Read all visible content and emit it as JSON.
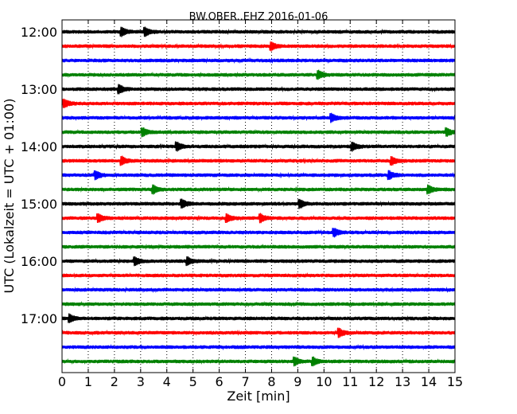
{
  "chart_data": {
    "type": "line",
    "title": "BW.OBER..EHZ 2016-01-06",
    "xlabel": "Zeit  [min]",
    "ylabel": "UTC (Lokalzeit = UTC + 01:00)",
    "xlim": [
      0,
      15
    ],
    "x_ticks": [
      0,
      1,
      2,
      3,
      4,
      5,
      6,
      7,
      8,
      9,
      10,
      11,
      12,
      13,
      14,
      15
    ],
    "x_tick_labels": [
      "0",
      "1",
      "2",
      "3",
      "4",
      "5",
      "6",
      "7",
      "8",
      "9",
      "10",
      "11",
      "12",
      "13",
      "14",
      "15"
    ],
    "trace_interval_min": 15,
    "grid": "vertical dotted at each minute",
    "y_ticks": [
      {
        "label": "12:00",
        "trace_index": 0
      },
      {
        "label": "13:00",
        "trace_index": 4
      },
      {
        "label": "14:00",
        "trace_index": 8
      },
      {
        "label": "15:00",
        "trace_index": 12
      },
      {
        "label": "16:00",
        "trace_index": 16
      },
      {
        "label": "17:00",
        "trace_index": 20
      }
    ],
    "color_cycle": [
      "#000000",
      "#ff0000",
      "#0000ff",
      "#008000"
    ],
    "traces": [
      {
        "start": "12:00",
        "events": [
          2.3,
          3.2
        ]
      },
      {
        "start": "12:15",
        "events": [
          8.0
        ]
      },
      {
        "start": "12:30",
        "events": []
      },
      {
        "start": "12:45",
        "events": [
          9.8
        ]
      },
      {
        "start": "13:00",
        "events": [
          2.2
        ]
      },
      {
        "start": "13:15",
        "events": [
          0.1
        ]
      },
      {
        "start": "13:30",
        "events": [
          10.3
        ]
      },
      {
        "start": "13:45",
        "events": [
          3.1,
          14.7
        ]
      },
      {
        "start": "14:00",
        "events": [
          4.4,
          11.1
        ]
      },
      {
        "start": "14:15",
        "events": [
          2.3,
          12.6
        ]
      },
      {
        "start": "14:30",
        "events": [
          1.3,
          12.5
        ]
      },
      {
        "start": "14:45",
        "events": [
          3.5,
          14.0
        ]
      },
      {
        "start": "15:00",
        "events": [
          4.6,
          9.1
        ]
      },
      {
        "start": "15:15",
        "events": [
          1.4,
          6.3,
          7.6
        ]
      },
      {
        "start": "15:30",
        "events": [
          10.4
        ]
      },
      {
        "start": "15:45",
        "events": []
      },
      {
        "start": "16:00",
        "events": [
          2.8,
          4.8
        ]
      },
      {
        "start": "16:15",
        "events": []
      },
      {
        "start": "16:30",
        "events": []
      },
      {
        "start": "16:45",
        "events": []
      },
      {
        "start": "17:00",
        "events": [
          0.3
        ]
      },
      {
        "start": "17:15",
        "events": [
          10.6
        ]
      },
      {
        "start": "17:30",
        "events": []
      },
      {
        "start": "17:45",
        "events": [
          8.9,
          9.6
        ]
      }
    ]
  }
}
